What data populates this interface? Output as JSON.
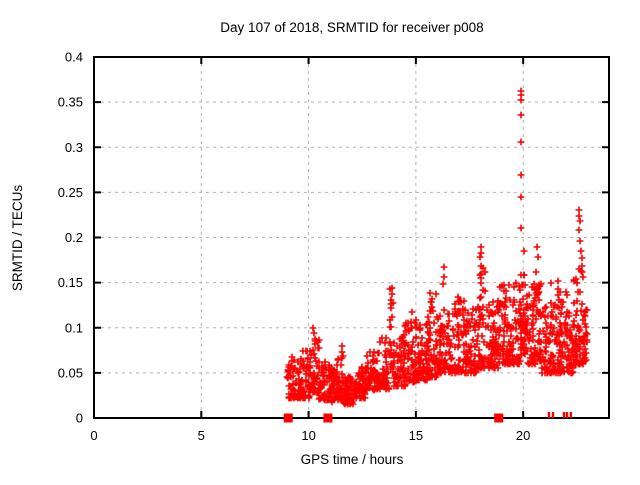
{
  "chart_data": {
    "type": "scatter",
    "title": "Day 107 of 2018, SRMTID for receiver p008",
    "xlabel": "GPS time / hours",
    "ylabel": "SRMTID / TECUs",
    "xlim": [
      0,
      24
    ],
    "ylim": [
      0,
      0.4
    ],
    "xticks": [
      0,
      5,
      10,
      15,
      20
    ],
    "xtick_labels": [
      "0",
      "5",
      "10",
      "15",
      "20"
    ],
    "yticks": [
      0,
      0.05,
      0.1,
      0.15,
      0.2,
      0.25,
      0.3,
      0.35,
      0.4
    ],
    "ytick_labels": [
      "0",
      "0.05",
      "0.1",
      "0.15",
      "0.2",
      "0.25",
      "0.3",
      "0.35",
      "0.4"
    ],
    "grid": true,
    "legend": false,
    "marker": "plus",
    "marker_color": "#ff0000",
    "grid_color": "#b3b3b3",
    "frame_color": "#000000",
    "seed": 1107,
    "clusters_format": "[x_start_hours, x_end_hours, n_points, y_min_TECUs, y_max_TECUs, low_bias_exponent]",
    "clusters": [
      [
        9.0,
        9.6,
        60,
        0.022,
        0.068,
        1.6
      ],
      [
        9.6,
        10.1,
        55,
        0.022,
        0.075,
        1.8
      ],
      [
        10.05,
        10.5,
        50,
        0.028,
        0.088,
        1.8
      ],
      [
        10.5,
        11.0,
        45,
        0.02,
        0.062,
        1.6
      ],
      [
        11.0,
        11.35,
        40,
        0.018,
        0.055,
        1.5
      ],
      [
        11.3,
        11.6,
        40,
        0.02,
        0.08,
        2.0
      ],
      [
        11.55,
        12.1,
        70,
        0.015,
        0.048,
        1.4
      ],
      [
        12.1,
        12.7,
        70,
        0.022,
        0.06,
        1.6
      ],
      [
        12.7,
        13.3,
        60,
        0.03,
        0.075,
        1.7
      ],
      [
        13.3,
        13.75,
        50,
        0.032,
        0.09,
        1.8
      ],
      [
        13.75,
        13.98,
        20,
        0.05,
        0.145,
        1.2
      ],
      [
        13.95,
        14.5,
        60,
        0.035,
        0.095,
        1.7
      ],
      [
        14.5,
        15.05,
        60,
        0.04,
        0.12,
        1.8
      ],
      [
        15.05,
        15.55,
        60,
        0.042,
        0.105,
        1.7
      ],
      [
        15.55,
        16.05,
        60,
        0.045,
        0.138,
        1.9
      ],
      [
        16.05,
        16.7,
        70,
        0.05,
        0.125,
        1.7
      ],
      [
        16.7,
        17.35,
        70,
        0.05,
        0.133,
        1.8
      ],
      [
        17.35,
        17.95,
        65,
        0.05,
        0.125,
        1.7
      ],
      [
        17.95,
        18.25,
        40,
        0.055,
        0.175,
        2.2
      ],
      [
        18.25,
        18.85,
        60,
        0.055,
        0.135,
        1.7
      ],
      [
        18.85,
        19.35,
        60,
        0.06,
        0.15,
        1.8
      ],
      [
        19.35,
        19.85,
        60,
        0.06,
        0.155,
        1.8
      ],
      [
        19.85,
        20.1,
        45,
        0.07,
        0.16,
        1.5
      ],
      [
        20.1,
        20.55,
        55,
        0.06,
        0.15,
        1.7
      ],
      [
        20.55,
        20.85,
        40,
        0.06,
        0.15,
        1.9
      ],
      [
        20.85,
        21.5,
        70,
        0.05,
        0.13,
        1.7
      ],
      [
        21.5,
        22.05,
        60,
        0.05,
        0.14,
        1.8
      ],
      [
        22.05,
        22.35,
        40,
        0.05,
        0.12,
        1.6
      ],
      [
        22.35,
        22.8,
        55,
        0.06,
        0.165,
        1.8
      ],
      [
        22.8,
        23.0,
        25,
        0.06,
        0.12,
        1.5
      ]
    ],
    "spike_points": [
      [
        10.2,
        0.1
      ],
      [
        10.23,
        0.094
      ],
      [
        10.48,
        0.086
      ],
      [
        13.84,
        0.131
      ],
      [
        13.87,
        0.144
      ],
      [
        13.9,
        0.137
      ],
      [
        13.86,
        0.122
      ],
      [
        13.88,
        0.112
      ],
      [
        15.68,
        0.139
      ],
      [
        15.7,
        0.128
      ],
      [
        16.3,
        0.167
      ],
      [
        16.32,
        0.156
      ],
      [
        16.28,
        0.148
      ],
      [
        16.95,
        0.134
      ],
      [
        17.02,
        0.128
      ],
      [
        18.0,
        0.178
      ],
      [
        18.02,
        0.189
      ],
      [
        18.03,
        0.183
      ],
      [
        18.05,
        0.168
      ],
      [
        18.01,
        0.158
      ],
      [
        19.89,
        0.269
      ],
      [
        19.9,
        0.362
      ],
      [
        19.9,
        0.336
      ],
      [
        19.9,
        0.306
      ],
      [
        19.9,
        0.245
      ],
      [
        19.91,
        0.358
      ],
      [
        19.91,
        0.21
      ],
      [
        19.92,
        0.352
      ],
      [
        20.02,
        0.185
      ],
      [
        20.03,
        0.158
      ],
      [
        20.62,
        0.162
      ],
      [
        20.65,
        0.19
      ],
      [
        20.68,
        0.178
      ],
      [
        21.3,
        0.15
      ],
      [
        21.6,
        0.152
      ],
      [
        21.63,
        0.143
      ],
      [
        22.58,
        0.165
      ],
      [
        22.6,
        0.224
      ],
      [
        22.61,
        0.208
      ],
      [
        22.62,
        0.231
      ],
      [
        22.63,
        0.218
      ],
      [
        22.65,
        0.196
      ],
      [
        22.7,
        0.185
      ],
      [
        22.72,
        0.177
      ],
      [
        22.74,
        0.168
      ],
      [
        22.95,
        0.12
      ]
    ],
    "zero_value_square_hours": [
      9.05,
      10.9,
      18.86
    ],
    "zero_value_bar_hours": [
      21.2,
      21.39,
      21.9,
      22.04,
      22.22
    ]
  }
}
